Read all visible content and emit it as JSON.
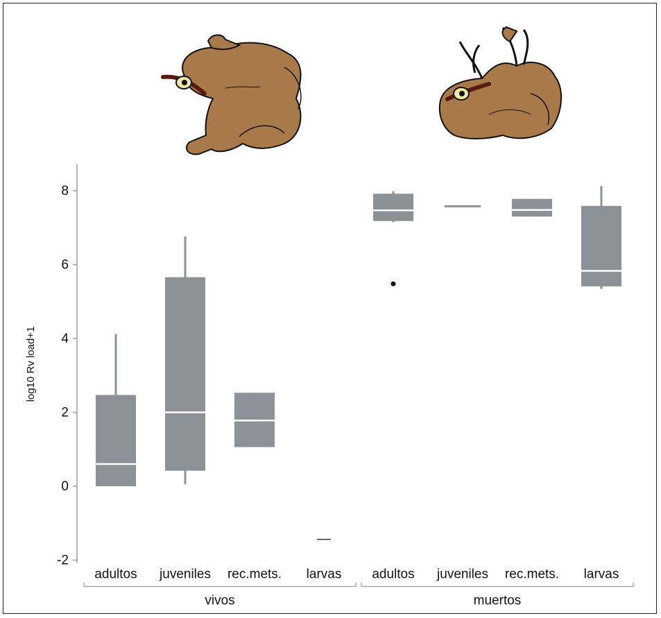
{
  "chart_data": {
    "type": "box",
    "ylabel": "log10 Rv load+1",
    "ylim": [
      -2,
      8.7
    ],
    "yticks": [
      8,
      6,
      4,
      2,
      0,
      -2
    ],
    "grid": false,
    "groups": [
      {
        "label": "vivos",
        "categories": [
          "adultos",
          "juveniles",
          "rec.mets.",
          "larvas"
        ]
      },
      {
        "label": "muertos",
        "categories": [
          "adultos",
          "juveniles",
          "rec.mets.",
          "larvas"
        ]
      }
    ],
    "boxes": [
      {
        "group": "vivos",
        "category": "adultos",
        "whisker_low": 0.0,
        "q1": 0.0,
        "median": 0.6,
        "q3": 2.47,
        "whisker_high": 4.12,
        "outliers": []
      },
      {
        "group": "vivos",
        "category": "juveniles",
        "whisker_low": 0.05,
        "q1": 0.42,
        "median": 2.0,
        "q3": 5.66,
        "whisker_high": 6.76,
        "outliers": []
      },
      {
        "group": "vivos",
        "category": "rec.mets.",
        "whisker_low": 1.06,
        "q1": 1.06,
        "median": 1.78,
        "q3": 2.53,
        "whisker_high": 2.53,
        "outliers": []
      },
      {
        "group": "vivos",
        "category": "larvas",
        "whisker_low": -1.44,
        "q1": -1.44,
        "median": -1.44,
        "q3": -1.44,
        "whisker_high": -1.44,
        "outliers": []
      },
      {
        "group": "muertos",
        "category": "adultos",
        "whisker_low": 7.15,
        "q1": 7.18,
        "median": 7.47,
        "q3": 7.92,
        "whisker_high": 7.99,
        "outliers": [
          5.48
        ]
      },
      {
        "group": "muertos",
        "category": "juveniles",
        "whisker_low": 7.58,
        "q1": 7.58,
        "median": 7.58,
        "q3": 7.58,
        "whisker_high": 7.58,
        "outliers": []
      },
      {
        "group": "muertos",
        "category": "rec.mets.",
        "whisker_low": 7.3,
        "q1": 7.3,
        "median": 7.48,
        "q3": 7.78,
        "whisker_high": 7.78,
        "outliers": []
      },
      {
        "group": "muertos",
        "category": "larvas",
        "whisker_low": 5.34,
        "q1": 5.41,
        "median": 5.83,
        "q3": 7.59,
        "whisker_high": 8.13,
        "outliers": []
      }
    ],
    "colors": {
      "box": "#8c9097",
      "median": "#ffffff",
      "axis": "#9a9a9a",
      "outlier": "#111111"
    }
  },
  "illustrations": {
    "left": "frog-alive-icon",
    "right": "frog-dead-icon",
    "frog_fill": "#a87a4a",
    "frog_stroke": "#111111",
    "stripe": "#5a1a12",
    "eye": "#efe9a8"
  }
}
